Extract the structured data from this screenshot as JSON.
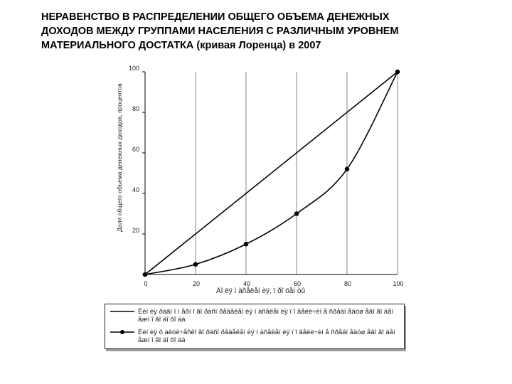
{
  "title_lines": [
    "НЕРАВЕНСТВО В РАСПРЕДЕЛЕНИИ ОБЩЕГО ОБЪЕМА ДЕНЕЖНЫХ",
    "ДОХОДОВ МЕЖДУ ГРУППАМИ НАСЕЛЕНИЯ С РАЗЛИЧНЫМ УРОВНЕМ",
    "МАТЕРИАЛЬНОГО ДОСТАТКА (кривая Лоренца) в 2007"
  ],
  "chart_data": {
    "type": "line",
    "title": "НЕРАВЕНСТВО В РАСПРЕДЕЛЕНИИ ОБЩЕГО ОБЪЕМА ДЕНЕЖНЫХ ДОХОДОВ МЕЖДУ ГРУППАМИ НАСЕЛЕНИЯ С РАЗЛИЧНЫМ УРОВНЕМ МАТЕРИАЛЬНОГО ДОСТАТКА (кривая Лоренца) в 2007",
    "xlabel": "Äî ëÿ í àñåëåí èÿ, ï ðî öåí òû",
    "ylabel": "Доля общего объема денежных доходов, процентов",
    "xlim": [
      0,
      100
    ],
    "ylim": [
      0,
      100
    ],
    "xticks": [
      "0",
      "20",
      "40",
      "60",
      "80",
      "100"
    ],
    "yticks": [
      "20",
      "40",
      "60",
      "80",
      "100"
    ],
    "grid": "vertical",
    "legend_position": "bottom",
    "series": [
      {
        "name": "Ëèí èÿ ðàâí î ì åðí î ãî ðàñï ðåäåëåí èÿ í àñåëåí èÿ ï î âåëè÷èí å ñðåäí åäóø åâî ãî äåí åæí î ãî äî õî äà",
        "marker": "none",
        "x": [
          0,
          100
        ],
        "y": [
          0,
          100
        ]
      },
      {
        "name": "Ëèí èÿ ô àêòè÷åñêî ãî ðàñï ðåäåëåí èÿ í àñåëåí èÿ ï î âåëè÷èí å ñðåäí åäóø åâî ãî äåí åæí î ãî äî õî äà",
        "marker": "dot",
        "x": [
          0,
          20,
          40,
          60,
          80,
          100
        ],
        "y": [
          0,
          5,
          15,
          30,
          52,
          100
        ]
      }
    ]
  }
}
